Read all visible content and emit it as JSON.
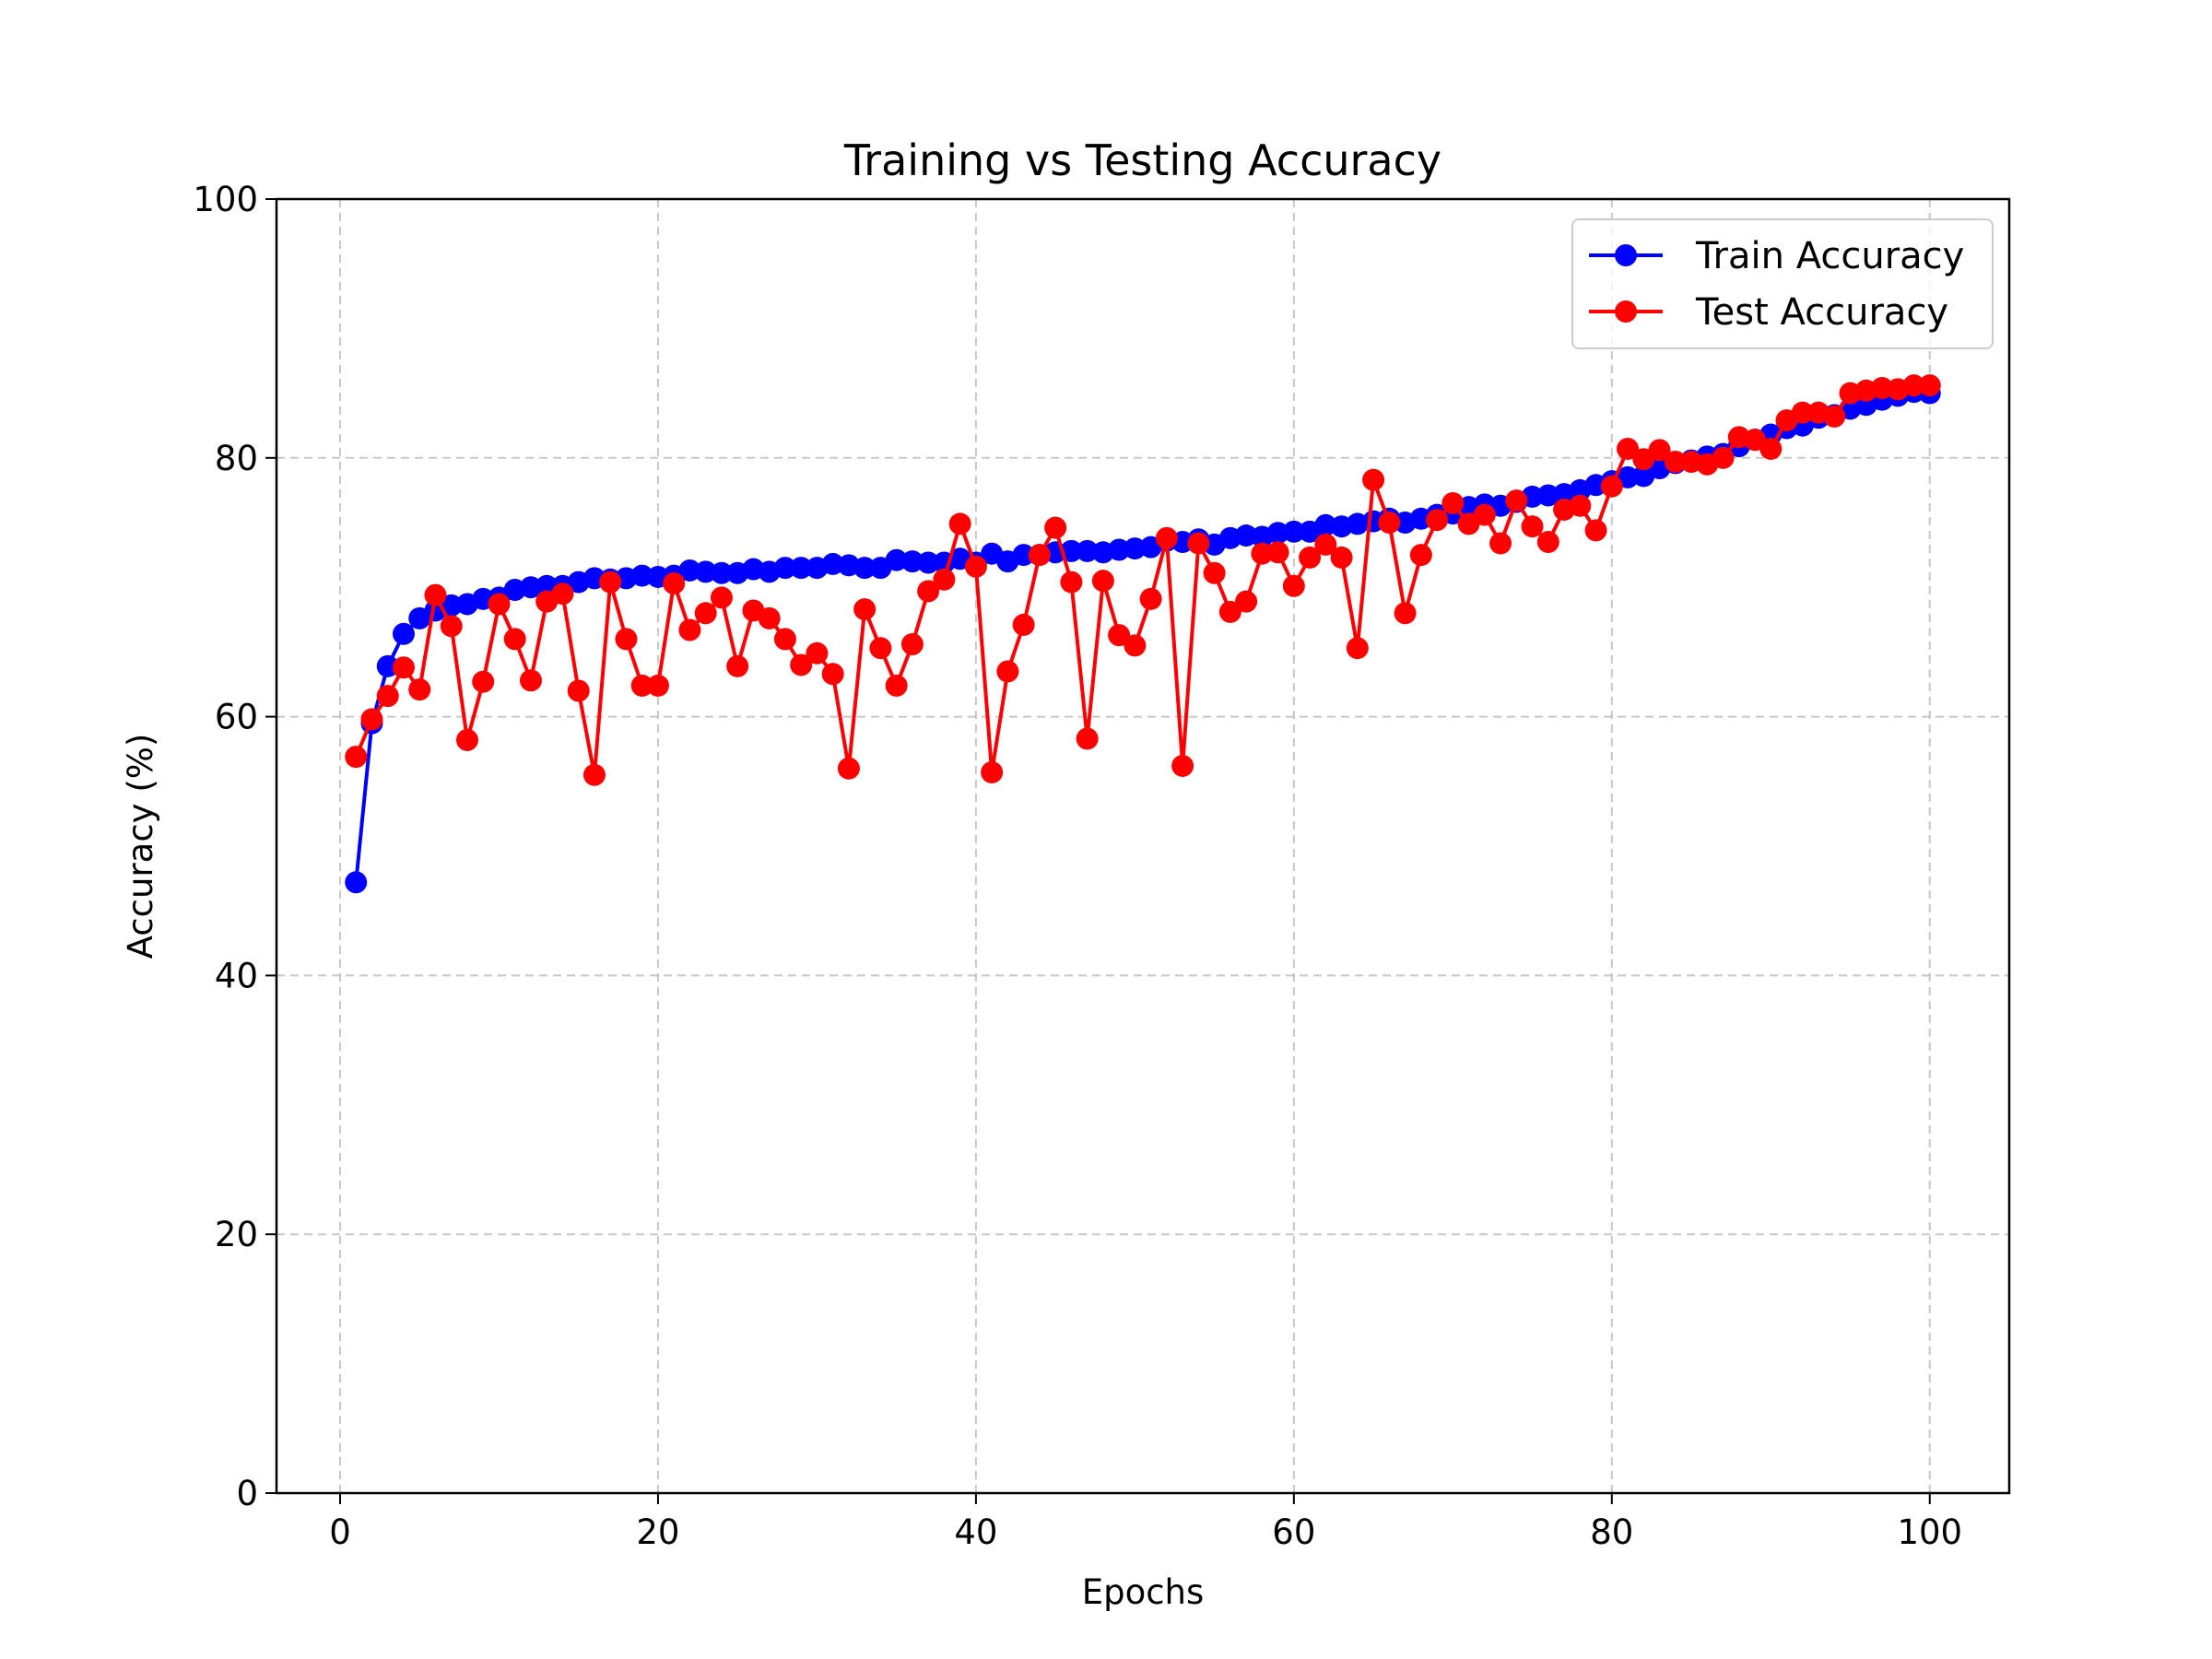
{
  "chart_data": {
    "type": "line",
    "title": "Training vs Testing Accuracy",
    "xlabel": "Epochs",
    "ylabel": "Accuracy (%)",
    "xlim": [
      -4,
      105
    ],
    "ylim": [
      0,
      100
    ],
    "xticks": [
      0,
      20,
      40,
      60,
      80,
      100
    ],
    "yticks": [
      0,
      20,
      40,
      60,
      80,
      100
    ],
    "grid": true,
    "legend_position": "top-right",
    "x": [
      1,
      2,
      3,
      4,
      5,
      6,
      7,
      8,
      9,
      10,
      11,
      12,
      13,
      14,
      15,
      16,
      17,
      18,
      19,
      20,
      21,
      22,
      23,
      24,
      25,
      26,
      27,
      28,
      29,
      30,
      31,
      32,
      33,
      34,
      35,
      36,
      37,
      38,
      39,
      40,
      41,
      42,
      43,
      44,
      45,
      46,
      47,
      48,
      49,
      50,
      51,
      52,
      53,
      54,
      55,
      56,
      57,
      58,
      59,
      60,
      61,
      62,
      63,
      64,
      65,
      66,
      67,
      68,
      69,
      70,
      71,
      72,
      73,
      74,
      75,
      76,
      77,
      78,
      79,
      80,
      81,
      82,
      83,
      84,
      85,
      86,
      87,
      88,
      89,
      90,
      91,
      92,
      93,
      94,
      95,
      96,
      97,
      98,
      99,
      100
    ],
    "series": [
      {
        "name": "Train Accuracy",
        "color": "#0000ff",
        "values": [
          47.2,
          59.5,
          63.9,
          66.4,
          67.6,
          68.2,
          68.6,
          68.7,
          69.1,
          69.2,
          69.8,
          70.0,
          70.1,
          70.1,
          70.4,
          70.7,
          70.6,
          70.7,
          70.9,
          70.8,
          70.9,
          71.3,
          71.2,
          71.1,
          71.1,
          71.4,
          71.2,
          71.5,
          71.5,
          71.5,
          71.8,
          71.7,
          71.5,
          71.5,
          72.1,
          72.0,
          71.9,
          71.9,
          72.2,
          71.9,
          72.6,
          72.0,
          72.5,
          72.5,
          72.7,
          72.8,
          72.8,
          72.7,
          72.9,
          73.0,
          73.1,
          73.6,
          73.5,
          73.7,
          73.3,
          73.8,
          74.0,
          73.9,
          74.2,
          74.3,
          74.3,
          74.8,
          74.7,
          74.9,
          75.1,
          75.3,
          75.0,
          75.3,
          75.6,
          75.7,
          76.2,
          76.4,
          76.3,
          76.6,
          77.0,
          77.1,
          77.2,
          77.5,
          77.9,
          78.2,
          78.5,
          78.6,
          79.2,
          79.6,
          79.8,
          80.1,
          80.3,
          80.9,
          81.4,
          81.8,
          82.3,
          82.5,
          83.1,
          83.3,
          83.8,
          84.1,
          84.5,
          84.8,
          85.1,
          85.0
        ]
      },
      {
        "name": "Test Accuracy",
        "color": "#ff0000",
        "values": [
          56.9,
          59.8,
          61.6,
          63.8,
          62.1,
          69.4,
          67.0,
          58.2,
          62.7,
          68.7,
          66.0,
          62.8,
          68.9,
          69.5,
          62.0,
          55.5,
          70.4,
          66.0,
          62.4,
          62.4,
          70.3,
          66.7,
          68.0,
          69.2,
          63.9,
          68.2,
          67.6,
          66.0,
          64.0,
          64.9,
          63.3,
          56.0,
          68.3,
          65.3,
          62.4,
          65.6,
          69.7,
          70.6,
          74.9,
          71.6,
          55.7,
          63.5,
          67.1,
          72.5,
          74.6,
          70.4,
          58.3,
          70.5,
          66.3,
          65.5,
          69.1,
          73.8,
          56.2,
          73.4,
          71.1,
          68.1,
          68.9,
          72.6,
          72.7,
          70.1,
          72.3,
          73.3,
          72.3,
          65.3,
          78.3,
          75.0,
          68.0,
          72.5,
          75.2,
          76.5,
          74.9,
          75.6,
          73.4,
          76.7,
          74.7,
          73.5,
          76.0,
          76.3,
          74.4,
          77.8,
          80.7,
          79.9,
          80.6,
          79.7,
          79.7,
          79.5,
          80.0,
          81.6,
          81.4,
          80.7,
          82.9,
          83.5,
          83.5,
          83.2,
          85.0,
          85.2,
          85.4,
          85.3,
          85.6,
          85.6
        ]
      }
    ]
  }
}
